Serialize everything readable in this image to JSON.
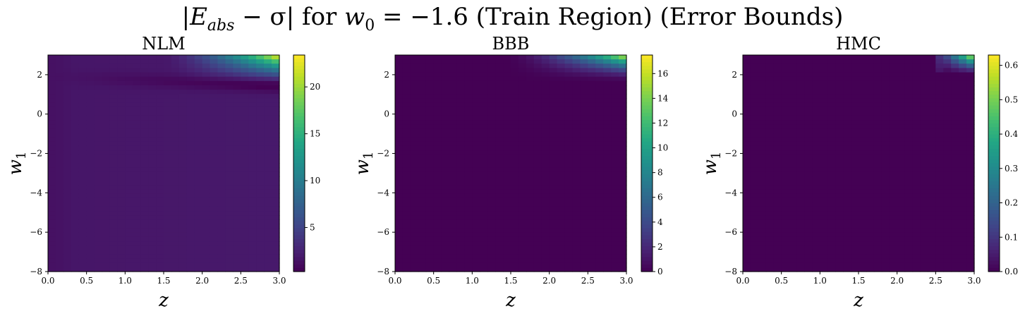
{
  "figure": {
    "title_parts": {
      "left": "|",
      "E": "E",
      "E_sub": "abs",
      "minus_sigma": " − σ| for ",
      "w": "w",
      "w_sub": "0",
      "eq": " = −1.6 (Train Region) (Error Bounds)"
    }
  },
  "chart_data": [
    {
      "type": "heatmap",
      "title": "NLM",
      "xlabel": "z",
      "ylabel": "w",
      "ylabel_sub": "1",
      "xlim": [
        0.0,
        3.0
      ],
      "ylim": [
        -8,
        3
      ],
      "xticks": [
        "0.0",
        "0.5",
        "1.0",
        "1.5",
        "2.0",
        "2.5",
        "3.0"
      ],
      "yticks": [
        "2",
        "0",
        "−2",
        "−4",
        "−6",
        "−8"
      ],
      "ytick_values": [
        2,
        0,
        -2,
        -4,
        -6,
        -8
      ],
      "colorbar": {
        "min": 0.3,
        "max": 23.4,
        "ticks": [
          "5",
          "10",
          "15",
          "20"
        ],
        "tick_values": [
          5,
          10,
          15,
          20
        ]
      },
      "colormap": "viridis",
      "pattern": "nlm"
    },
    {
      "type": "heatmap",
      "title": "BBB",
      "xlabel": "z",
      "ylabel": "w",
      "ylabel_sub": "1",
      "xlim": [
        0.0,
        3.0
      ],
      "ylim": [
        -8,
        3
      ],
      "xticks": [
        "0.0",
        "0.5",
        "1.0",
        "1.5",
        "2.0",
        "2.5",
        "3.0"
      ],
      "yticks": [
        "2",
        "0",
        "−2",
        "−4",
        "−6",
        "−8"
      ],
      "ytick_values": [
        2,
        0,
        -2,
        -4,
        -6,
        -8
      ],
      "colorbar": {
        "min": 0,
        "max": 17.5,
        "ticks": [
          "0",
          "2",
          "4",
          "6",
          "8",
          "10",
          "12",
          "14",
          "16"
        ],
        "tick_values": [
          0,
          2,
          4,
          6,
          8,
          10,
          12,
          14,
          16
        ]
      },
      "colormap": "viridis",
      "pattern": "bbb"
    },
    {
      "type": "heatmap",
      "title": "HMC",
      "xlabel": "z",
      "ylabel": "w",
      "ylabel_sub": "1",
      "xlim": [
        0.0,
        3.0
      ],
      "ylim": [
        -8,
        3
      ],
      "xticks": [
        "0.0",
        "0.5",
        "1.0",
        "1.5",
        "2.0",
        "2.5",
        "3.0"
      ],
      "yticks": [
        "2",
        "0",
        "−2",
        "−4",
        "−6",
        "−8"
      ],
      "ytick_values": [
        2,
        0,
        -2,
        -4,
        -6,
        -8
      ],
      "colorbar": {
        "min": 0,
        "max": 0.63,
        "ticks": [
          "0.0",
          "0.1",
          "0.2",
          "0.3",
          "0.4",
          "0.5",
          "0.6"
        ],
        "tick_values": [
          0.0,
          0.1,
          0.2,
          0.3,
          0.4,
          0.5,
          0.6
        ]
      },
      "colormap": "viridis",
      "pattern": "hmc"
    }
  ]
}
